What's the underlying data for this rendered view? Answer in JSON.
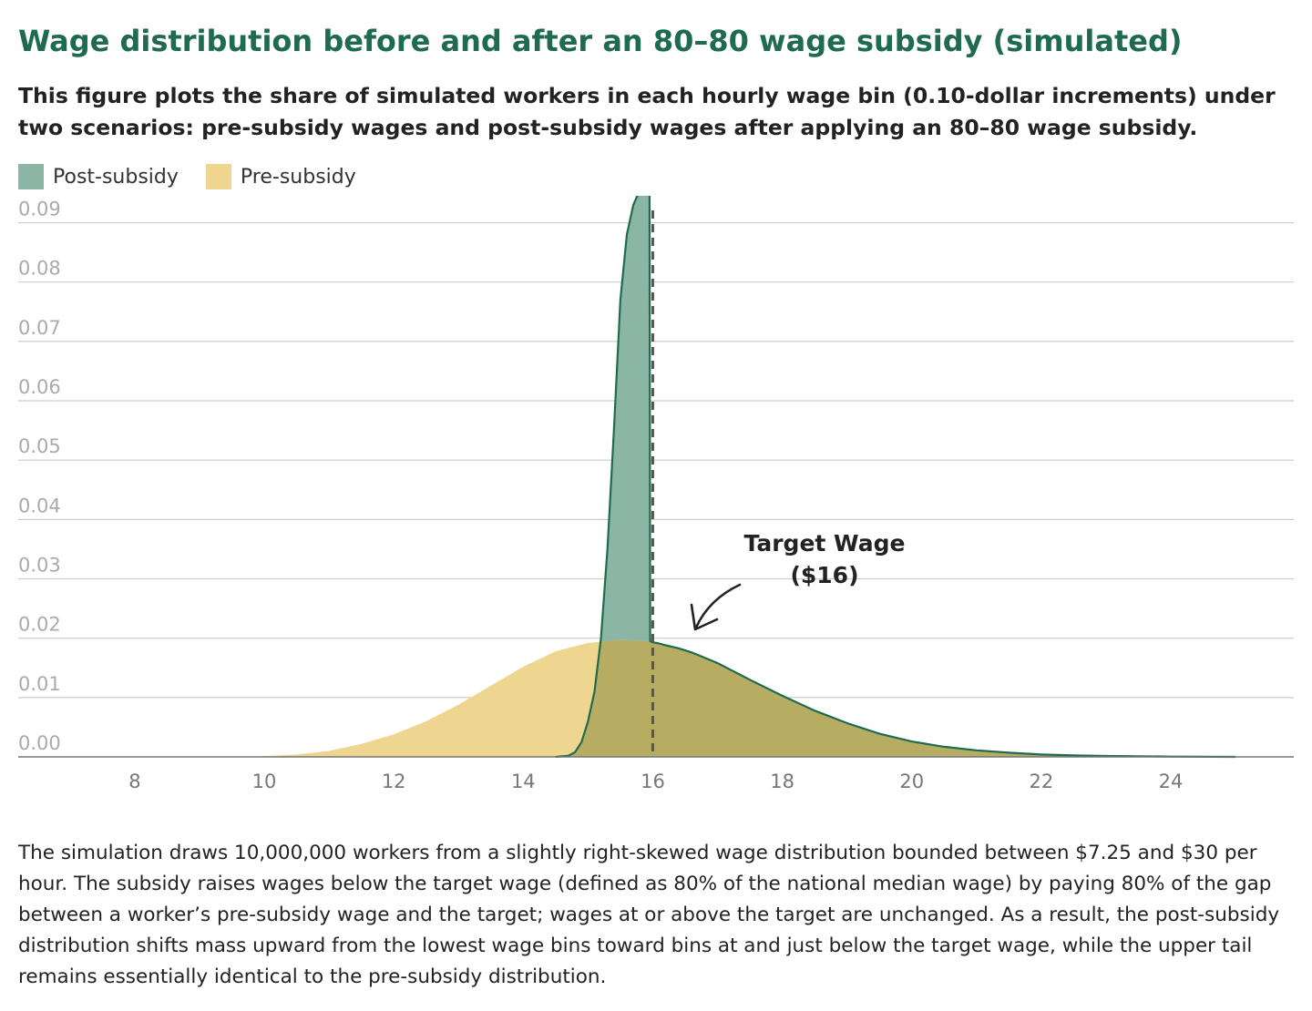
{
  "header": {
    "title": "Wage distribution before and after an 80–80 wage subsidy (simulated)",
    "subtitle": "This figure plots the share of simulated workers in each hourly wage bin (0.10-dollar increments) under two scenarios: pre-subsidy wages and post-subsidy wages after applying an 80–80 wage subsidy."
  },
  "colors": {
    "post_fill": "#8bb5a4",
    "post_line": "#1f6b4f",
    "pre_fill": "#efd690",
    "overlap_fill": "#b6ad62",
    "grid": "#cccccc",
    "target_line": "#555555"
  },
  "footnote": "The simulation draws 10,000,000 workers from a slightly right-skewed wage distribution bounded between $7.25 and $30 per hour. The subsidy raises wages below the target wage (defined as 80% of the national median wage) by paying 80% of the gap between a worker’s pre-subsidy wage and the target; wages at or above the target are unchanged. As a result, the post-subsidy distribution shifts mass upward from the lowest wage bins toward bins at and just below the target wage, while the upper tail remains essentially identical to the pre-subsidy distribution.",
  "chart_data": {
    "type": "area",
    "title": "Wage distribution before and after an 80–80 wage subsidy (simulated)",
    "xlabel": "",
    "ylabel": "",
    "xlim": [
      6.2,
      25.9
    ],
    "ylim": [
      0,
      0.093
    ],
    "x_ticks": [
      8,
      10,
      12,
      14,
      16,
      18,
      20,
      22,
      24
    ],
    "x_tick_labels": [
      "8",
      "10",
      "12",
      "14",
      "16",
      "18",
      "20",
      "22",
      "24"
    ],
    "y_ticks": [
      0,
      0.01,
      0.02,
      0.03,
      0.04,
      0.05,
      0.06,
      0.07,
      0.08,
      0.09
    ],
    "y_tick_labels": [
      "0.00",
      "0.01",
      "0.02",
      "0.03",
      "0.04",
      "0.05",
      "0.06",
      "0.07",
      "0.08",
      "0.09"
    ],
    "grid": true,
    "legend_position": "top-left",
    "legend": [
      "Post-subsidy",
      "Pre-subsidy"
    ],
    "target_wage": 16,
    "annotation": {
      "line1": "Target Wage",
      "line2": "($16)"
    },
    "series": [
      {
        "name": "Post-subsidy",
        "x": [
          14.5,
          14.7,
          14.8,
          14.9,
          15.0,
          15.1,
          15.2,
          15.3,
          15.4,
          15.5,
          15.6,
          15.7,
          15.8,
          15.9,
          15.95,
          15.96,
          16.0,
          16.1,
          16.2,
          16.4,
          16.6,
          17.0,
          17.5,
          18.0,
          18.5,
          19.0,
          19.5,
          20.0,
          20.5,
          21.0,
          21.5,
          22.0,
          22.5,
          23.0,
          23.5,
          24.0,
          25.0
        ],
        "y": [
          0,
          0.0002,
          0.0008,
          0.0025,
          0.006,
          0.011,
          0.02,
          0.035,
          0.055,
          0.077,
          0.088,
          0.093,
          0.0955,
          0.0955,
          0.0955,
          0.0195,
          0.0193,
          0.0191,
          0.0188,
          0.0183,
          0.0176,
          0.0158,
          0.013,
          0.0103,
          0.0078,
          0.0057,
          0.0039,
          0.0026,
          0.0017,
          0.0011,
          0.0007,
          0.0004,
          0.00025,
          0.00015,
          0.0001,
          5e-05,
          0
        ]
      },
      {
        "name": "Pre-subsidy",
        "x": [
          9.5,
          10.0,
          10.5,
          11.0,
          11.5,
          12.0,
          12.5,
          13.0,
          13.5,
          14.0,
          14.5,
          15.0,
          15.5,
          15.96,
          16.0,
          16.1,
          16.2,
          16.4,
          16.6,
          17.0,
          17.5,
          18.0,
          18.5,
          19.0,
          19.5,
          20.0,
          20.5,
          21.0,
          21.5,
          22.0,
          22.5,
          23.0,
          23.5,
          24.0,
          25.0
        ],
        "y": [
          0,
          0.0001,
          0.0004,
          0.001,
          0.0022,
          0.0038,
          0.006,
          0.0088,
          0.012,
          0.0152,
          0.0178,
          0.0192,
          0.0197,
          0.0195,
          0.0193,
          0.0191,
          0.0188,
          0.0183,
          0.0176,
          0.0158,
          0.013,
          0.0103,
          0.0078,
          0.0057,
          0.0039,
          0.0026,
          0.0017,
          0.0011,
          0.0007,
          0.0004,
          0.00025,
          0.00015,
          0.0001,
          5e-05,
          0
        ]
      }
    ]
  }
}
